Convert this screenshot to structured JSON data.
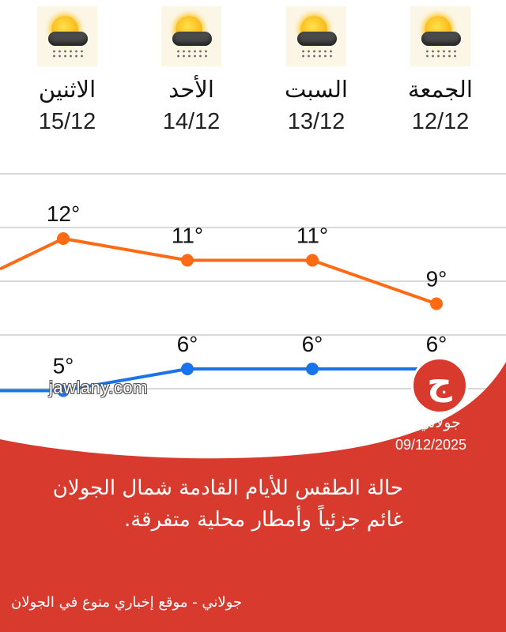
{
  "forecast": {
    "days": [
      {
        "name": "الاثنين",
        "date": "15/12",
        "icon": "partly-cloudy-rain-icon"
      },
      {
        "name": "الأحد",
        "date": "14/12",
        "icon": "partly-cloudy-rain-icon"
      },
      {
        "name": "السبت",
        "date": "13/12",
        "icon": "partly-cloudy-rain-icon"
      },
      {
        "name": "الجمعة",
        "date": "12/12",
        "icon": "partly-cloudy-rain-icon"
      }
    ]
  },
  "chart_data": {
    "type": "line",
    "categories": [
      "15/12",
      "14/12",
      "13/12",
      "12/12"
    ],
    "series": [
      {
        "values": [
          12,
          11,
          11,
          9
        ],
        "labels": [
          "12°",
          "11°",
          "11°",
          "9°"
        ],
        "color": "#ff6a13"
      },
      {
        "values": [
          5,
          6,
          6,
          6
        ],
        "labels": [
          "5°",
          "6°",
          "6°",
          "6°"
        ],
        "color": "#1a73e8"
      }
    ],
    "ylim": [
      3,
      14
    ],
    "grid": true
  },
  "watermark": "jawlany.com",
  "brand": {
    "glyph": "ج",
    "name": "جولاني",
    "date": "09/12/2025",
    "color": "#d93a2e"
  },
  "headline": {
    "line1": "حالة الطقس للأيام القادمة شمال الجولان",
    "line2": "غائم جزئياً وأمطار محلية متفرقة."
  },
  "footer": "جولاني - موقع إخباري منوع في الجولان"
}
